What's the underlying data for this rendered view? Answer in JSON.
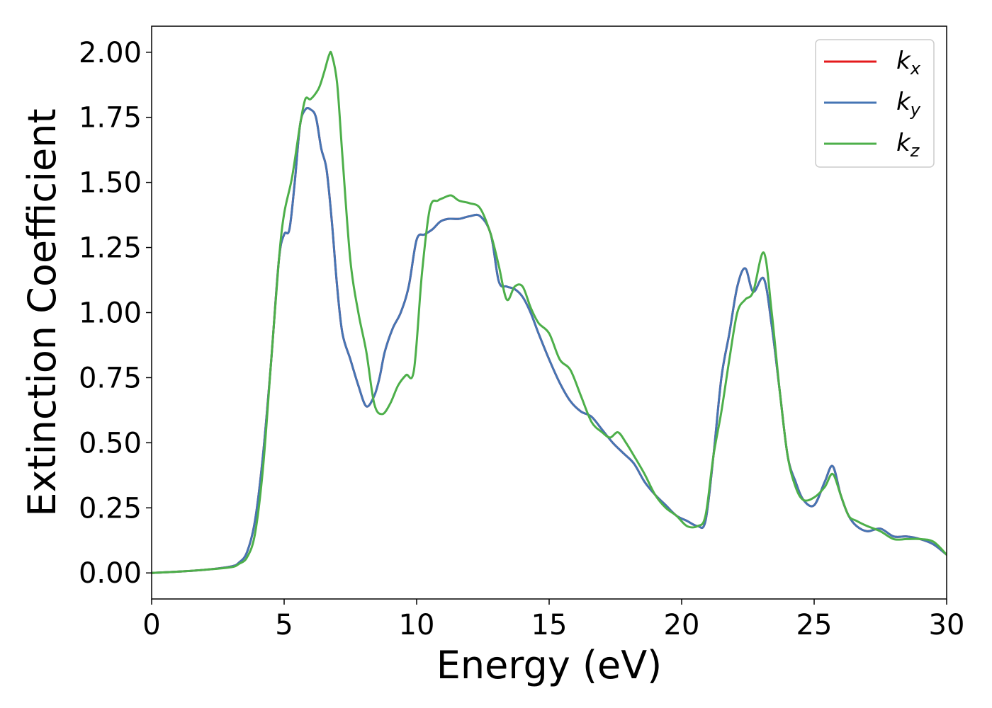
{
  "chart_data": {
    "type": "line",
    "title": "",
    "xlabel": "Energy (eV)",
    "ylabel": "Extinction Coefficient",
    "xlim": [
      0,
      30
    ],
    "ylim": [
      -0.1,
      2.1
    ],
    "xticks": [
      0,
      5,
      10,
      15,
      20,
      25,
      30
    ],
    "yticks": [
      0.0,
      0.25,
      0.5,
      0.75,
      1.0,
      1.25,
      1.5,
      1.75,
      2.0
    ],
    "ytick_labels": [
      "0.00",
      "0.25",
      "0.50",
      "0.75",
      "1.00",
      "1.25",
      "1.50",
      "1.75",
      "2.00"
    ],
    "grid": false,
    "legend_position": "top-right",
    "series": [
      {
        "name": "k",
        "sub": "x",
        "color": "#e41a1c",
        "x": [
          0,
          1,
          2,
          3,
          3.3,
          3.6,
          3.9,
          4.2,
          4.5,
          4.8,
          5.0,
          5.2,
          5.4,
          5.6,
          5.8,
          6.0,
          6.2,
          6.4,
          6.6,
          6.8,
          7.0,
          7.2,
          7.5,
          7.8,
          8.1,
          8.4,
          8.6,
          8.8,
          9.1,
          9.4,
          9.7,
          10.0,
          10.3,
          10.6,
          10.9,
          11.2,
          11.6,
          12.0,
          12.4,
          12.8,
          13.1,
          13.4,
          13.7,
          14.0,
          14.3,
          14.6,
          15.0,
          15.4,
          15.8,
          16.2,
          16.6,
          17.0,
          17.4,
          17.8,
          18.2,
          18.6,
          19.0,
          19.4,
          19.8,
          20.2,
          20.6,
          20.9,
          21.2,
          21.5,
          21.8,
          22.1,
          22.4,
          22.7,
          23.1,
          23.4,
          23.7,
          24.0,
          24.3,
          24.6,
          25.0,
          25.4,
          25.7,
          26.0,
          26.3,
          26.6,
          27.0,
          27.5,
          28.0,
          28.5,
          29.0,
          29.5,
          30.0
        ],
        "y": [
          0.0,
          0.005,
          0.012,
          0.025,
          0.04,
          0.08,
          0.2,
          0.45,
          0.8,
          1.2,
          1.3,
          1.32,
          1.5,
          1.72,
          1.78,
          1.78,
          1.75,
          1.63,
          1.55,
          1.35,
          1.1,
          0.92,
          0.82,
          0.72,
          0.64,
          0.68,
          0.75,
          0.85,
          0.94,
          1.0,
          1.1,
          1.28,
          1.3,
          1.32,
          1.35,
          1.36,
          1.36,
          1.37,
          1.37,
          1.3,
          1.12,
          1.1,
          1.09,
          1.06,
          1.0,
          0.92,
          0.82,
          0.73,
          0.66,
          0.62,
          0.6,
          0.55,
          0.5,
          0.46,
          0.42,
          0.35,
          0.3,
          0.26,
          0.22,
          0.2,
          0.18,
          0.2,
          0.45,
          0.75,
          0.92,
          1.1,
          1.17,
          1.08,
          1.13,
          0.95,
          0.7,
          0.45,
          0.35,
          0.28,
          0.26,
          0.35,
          0.41,
          0.3,
          0.22,
          0.18,
          0.16,
          0.17,
          0.14,
          0.14,
          0.13,
          0.11,
          0.07
        ]
      },
      {
        "name": "k",
        "sub": "y",
        "color": "#4575b4",
        "x": [
          0,
          1,
          2,
          3,
          3.3,
          3.6,
          3.9,
          4.2,
          4.5,
          4.8,
          5.0,
          5.2,
          5.4,
          5.6,
          5.8,
          6.0,
          6.2,
          6.4,
          6.6,
          6.8,
          7.0,
          7.2,
          7.5,
          7.8,
          8.1,
          8.4,
          8.6,
          8.8,
          9.1,
          9.4,
          9.7,
          10.0,
          10.3,
          10.6,
          10.9,
          11.2,
          11.6,
          12.0,
          12.4,
          12.8,
          13.1,
          13.4,
          13.7,
          14.0,
          14.3,
          14.6,
          15.0,
          15.4,
          15.8,
          16.2,
          16.6,
          17.0,
          17.4,
          17.8,
          18.2,
          18.6,
          19.0,
          19.4,
          19.8,
          20.2,
          20.6,
          20.9,
          21.2,
          21.5,
          21.8,
          22.1,
          22.4,
          22.7,
          23.1,
          23.4,
          23.7,
          24.0,
          24.3,
          24.6,
          25.0,
          25.4,
          25.7,
          26.0,
          26.3,
          26.6,
          27.0,
          27.5,
          28.0,
          28.5,
          29.0,
          29.5,
          30.0
        ],
        "y": [
          0.0,
          0.005,
          0.012,
          0.025,
          0.04,
          0.08,
          0.2,
          0.45,
          0.8,
          1.2,
          1.3,
          1.32,
          1.5,
          1.72,
          1.78,
          1.78,
          1.75,
          1.63,
          1.55,
          1.35,
          1.1,
          0.92,
          0.82,
          0.72,
          0.64,
          0.68,
          0.75,
          0.85,
          0.94,
          1.0,
          1.1,
          1.28,
          1.3,
          1.32,
          1.35,
          1.36,
          1.36,
          1.37,
          1.37,
          1.3,
          1.12,
          1.1,
          1.09,
          1.06,
          1.0,
          0.92,
          0.82,
          0.73,
          0.66,
          0.62,
          0.6,
          0.55,
          0.5,
          0.46,
          0.42,
          0.35,
          0.3,
          0.26,
          0.22,
          0.2,
          0.18,
          0.2,
          0.45,
          0.75,
          0.92,
          1.1,
          1.17,
          1.08,
          1.13,
          0.95,
          0.7,
          0.45,
          0.35,
          0.28,
          0.26,
          0.35,
          0.41,
          0.3,
          0.22,
          0.18,
          0.16,
          0.17,
          0.14,
          0.14,
          0.13,
          0.11,
          0.07
        ]
      },
      {
        "name": "k",
        "sub": "z",
        "color": "#4daf4a",
        "x": [
          0,
          1,
          2,
          3,
          3.3,
          3.6,
          3.9,
          4.2,
          4.5,
          4.8,
          5.0,
          5.3,
          5.6,
          5.8,
          6.0,
          6.3,
          6.5,
          6.7,
          6.8,
          7.0,
          7.2,
          7.5,
          7.8,
          8.1,
          8.4,
          8.7,
          9.0,
          9.3,
          9.6,
          9.9,
          10.2,
          10.5,
          10.8,
          11.0,
          11.3,
          11.6,
          12.0,
          12.4,
          12.8,
          13.1,
          13.4,
          13.7,
          14.0,
          14.3,
          14.6,
          15.0,
          15.4,
          15.8,
          16.2,
          16.6,
          17.0,
          17.3,
          17.6,
          17.9,
          18.2,
          18.6,
          19.0,
          19.4,
          19.8,
          20.2,
          20.6,
          20.9,
          21.2,
          21.5,
          21.8,
          22.1,
          22.4,
          22.7,
          23.1,
          23.4,
          23.7,
          24.0,
          24.3,
          24.6,
          25.0,
          25.4,
          25.7,
          26.0,
          26.3,
          26.6,
          27.0,
          27.5,
          28.0,
          28.5,
          29.0,
          29.5,
          30.0
        ],
        "y": [
          0.0,
          0.005,
          0.012,
          0.022,
          0.035,
          0.06,
          0.15,
          0.4,
          0.8,
          1.2,
          1.38,
          1.52,
          1.72,
          1.82,
          1.82,
          1.86,
          1.92,
          1.99,
          1.99,
          1.88,
          1.6,
          1.2,
          1.0,
          0.85,
          0.65,
          0.61,
          0.65,
          0.72,
          0.76,
          0.78,
          1.15,
          1.4,
          1.43,
          1.44,
          1.45,
          1.43,
          1.42,
          1.4,
          1.3,
          1.18,
          1.05,
          1.1,
          1.1,
          1.02,
          0.96,
          0.92,
          0.82,
          0.78,
          0.68,
          0.58,
          0.54,
          0.52,
          0.54,
          0.5,
          0.45,
          0.38,
          0.3,
          0.25,
          0.22,
          0.18,
          0.18,
          0.22,
          0.45,
          0.62,
          0.82,
          1.0,
          1.05,
          1.08,
          1.23,
          1.0,
          0.7,
          0.45,
          0.33,
          0.28,
          0.29,
          0.33,
          0.38,
          0.3,
          0.22,
          0.2,
          0.18,
          0.16,
          0.13,
          0.13,
          0.13,
          0.12,
          0.07
        ]
      }
    ]
  }
}
